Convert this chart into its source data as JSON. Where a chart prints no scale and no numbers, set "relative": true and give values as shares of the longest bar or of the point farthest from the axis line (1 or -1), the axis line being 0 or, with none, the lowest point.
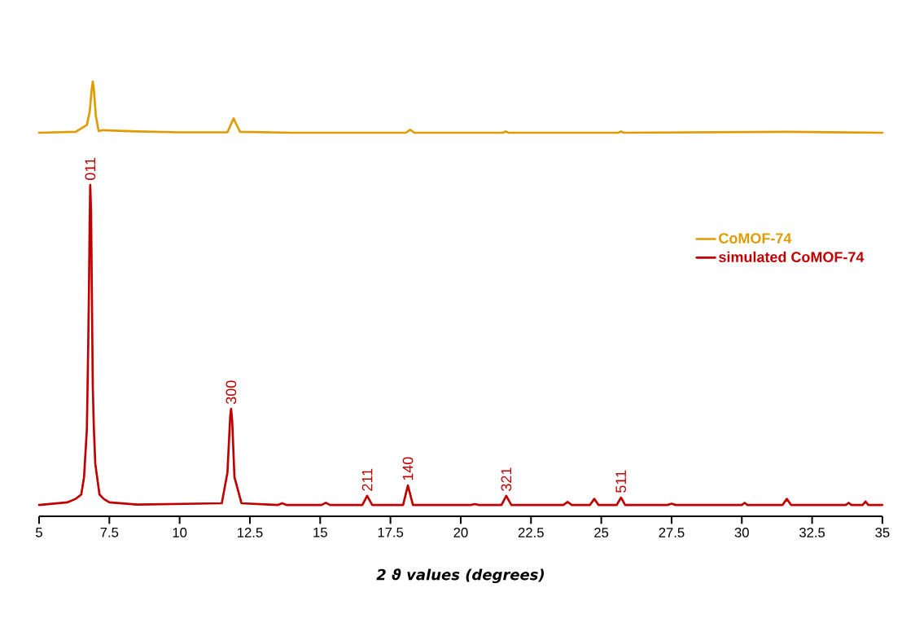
{
  "chart_data": {
    "type": "line",
    "relative": true,
    "xlabel": "2 ϑ values (degrees)",
    "xlim": [
      5,
      35
    ],
    "xticks": [
      5,
      7.5,
      10,
      12.5,
      15,
      17.5,
      20,
      22.5,
      25,
      27.5,
      30,
      32.5,
      35
    ],
    "legend": "right",
    "series": [
      {
        "name": "CoMOF-74",
        "color": "#e09b00",
        "x": [
          5,
          6.3,
          6.7,
          6.8,
          6.87,
          6.91,
          6.95,
          7.02,
          7.12,
          7.3,
          7.6,
          8.5,
          10,
          11.7,
          11.85,
          11.92,
          11.99,
          12.15,
          14,
          18.05,
          18.2,
          18.35,
          21.5,
          21.6,
          21.7,
          25.6,
          25.7,
          25.8,
          31.6,
          35
        ],
        "values": [
          0.882,
          0.884,
          0.9,
          0.93,
          0.98,
          1.0,
          0.98,
          0.92,
          0.886,
          0.888,
          0.887,
          0.885,
          0.883,
          0.883,
          0.905,
          0.915,
          0.905,
          0.884,
          0.882,
          0.882,
          0.889,
          0.882,
          0.882,
          0.885,
          0.882,
          0.882,
          0.885,
          0.882,
          0.884,
          0.882
        ]
      },
      {
        "name": "simulated CoMOF-74",
        "color": "#c00000",
        "x": [
          5,
          6.0,
          6.3,
          6.5,
          6.6,
          6.7,
          6.75,
          6.78,
          6.8,
          6.82,
          6.85,
          6.88,
          6.91,
          6.95,
          7.0,
          7.15,
          7.3,
          7.5,
          8.5,
          11.5,
          11.7,
          11.8,
          11.83,
          11.87,
          11.95,
          12.2,
          13.5,
          13.65,
          13.8,
          15.05,
          15.2,
          15.35,
          16.5,
          16.67,
          16.85,
          17.95,
          18.12,
          18.3,
          20.35,
          20.5,
          20.65,
          21.45,
          21.62,
          21.8,
          23.65,
          23.8,
          23.95,
          24.6,
          24.75,
          24.9,
          25.55,
          25.7,
          25.85,
          27.35,
          27.5,
          27.65,
          30.0,
          30.1,
          30.2,
          31.45,
          31.6,
          31.75,
          33.7,
          33.8,
          33.9,
          34.3,
          34.4,
          34.5,
          35
        ],
        "values": [
          0.026,
          0.032,
          0.04,
          0.05,
          0.09,
          0.2,
          0.4,
          0.55,
          0.68,
          0.762,
          0.7,
          0.5,
          0.3,
          0.2,
          0.12,
          0.05,
          0.04,
          0.032,
          0.027,
          0.03,
          0.1,
          0.23,
          0.247,
          0.22,
          0.09,
          0.03,
          0.026,
          0.03,
          0.026,
          0.026,
          0.031,
          0.026,
          0.026,
          0.047,
          0.026,
          0.026,
          0.071,
          0.026,
          0.026,
          0.028,
          0.026,
          0.026,
          0.047,
          0.026,
          0.026,
          0.033,
          0.026,
          0.026,
          0.04,
          0.026,
          0.026,
          0.043,
          0.026,
          0.026,
          0.029,
          0.026,
          0.026,
          0.031,
          0.026,
          0.026,
          0.04,
          0.026,
          0.026,
          0.031,
          0.026,
          0.026,
          0.034,
          0.026,
          0.026
        ]
      }
    ],
    "annotations": [
      {
        "text": "011",
        "x": 6.82,
        "y": 0.762
      },
      {
        "text": "300",
        "x": 11.83,
        "y": 0.247
      },
      {
        "text": "211",
        "x": 16.67,
        "y": 0.047
      },
      {
        "text": "140",
        "x": 18.12,
        "y": 0.071
      },
      {
        "text": "321",
        "x": 21.62,
        "y": 0.047
      },
      {
        "text": "511",
        "x": 25.7,
        "y": 0.043
      }
    ]
  }
}
